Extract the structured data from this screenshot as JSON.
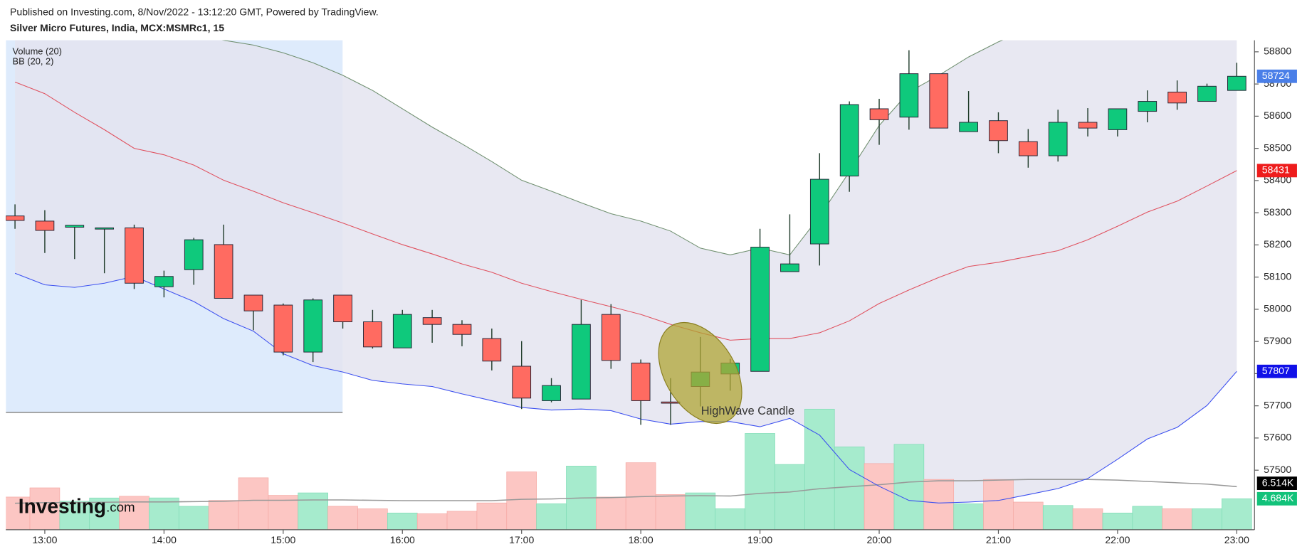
{
  "chart_data": {
    "type": "candlestick",
    "header": "Published on Investing.com, 8/Nov/2022 - 13:12:20 GMT, Powered by TradingView.",
    "title": "Silver Micro Futures, India, MCX:MSMRc1, 15",
    "annotation": "HighWave Candle",
    "watermark": [
      "Investing",
      ".com"
    ],
    "x": [
      "12:45",
      "13:00",
      "13:15",
      "13:30",
      "13:45",
      "14:00",
      "14:15",
      "14:30",
      "14:45",
      "15:00",
      "15:15",
      "15:30",
      "15:45",
      "16:00",
      "16:15",
      "16:30",
      "16:45",
      "17:00",
      "17:15",
      "17:30",
      "17:45",
      "18:00",
      "18:15",
      "18:30",
      "18:45",
      "19:00",
      "19:15",
      "19:30",
      "19:45",
      "20:00",
      "20:15",
      "20:30",
      "20:45",
      "21:00",
      "21:15",
      "21:30",
      "21:45",
      "22:00",
      "22:15",
      "22:30",
      "22:45",
      "23:00"
    ],
    "xticks": [
      "13:00",
      "14:00",
      "15:00",
      "16:00",
      "17:00",
      "18:00",
      "19:00",
      "20:00",
      "21:00",
      "22:00",
      "23:00"
    ],
    "open": [
      58290,
      58274,
      58255,
      58253,
      58253,
      58070,
      58123,
      58201,
      58044,
      58013,
      57867,
      58044,
      57961,
      57880,
      57974,
      57953,
      57909,
      57823,
      57716,
      57721,
      57984,
      57833,
      57712,
      57760,
      57799,
      57807,
      58117,
      58203,
      58414,
      58623,
      58597,
      58732,
      58552,
      58586,
      58521,
      58477,
      58581,
      58558,
      58615,
      58675,
      58646,
      58680
    ],
    "high": [
      58326,
      58308,
      58261,
      58253,
      58263,
      58120,
      58222,
      58263,
      58044,
      58018,
      58034,
      58044,
      57998,
      57998,
      57998,
      57966,
      57940,
      57901,
      57786,
      58029,
      58016,
      57844,
      57786,
      57914,
      57846,
      58250,
      58295,
      58485,
      58646,
      58654,
      58805,
      58732,
      58678,
      58612,
      58560,
      58620,
      58625,
      58623,
      58680,
      58711,
      58701,
      58766
    ],
    "low": [
      58250,
      58175,
      58156,
      58112,
      58063,
      58037,
      58076,
      58034,
      57935,
      57857,
      57836,
      57940,
      57878,
      57880,
      57896,
      57885,
      57810,
      57690,
      57711,
      57721,
      57815,
      57641,
      57641,
      57698,
      57747,
      57807,
      58117,
      58136,
      58365,
      58511,
      58558,
      58563,
      58552,
      58485,
      58440,
      58459,
      58537,
      58537,
      58581,
      58620,
      58646,
      58680
    ],
    "close": [
      58276,
      58245,
      58261,
      58253,
      58081,
      58102,
      58216,
      58034,
      57995,
      57867,
      58029,
      57961,
      57883,
      57984,
      57953,
      57922,
      57839,
      57724,
      57763,
      57953,
      57841,
      57716,
      57710,
      57805,
      57833,
      58193,
      58141,
      58404,
      58636,
      58589,
      58732,
      58563,
      58581,
      58524,
      58477,
      58581,
      58563,
      58623,
      58646,
      58641,
      58693,
      58724
    ],
    "up_color": "#0fc97c",
    "down_color": "#ff6b61",
    "last_price_color": "#4a7fe8",
    "ylim": [
      57315,
      58836
    ],
    "yticks": [
      57500,
      57600,
      57700,
      57800,
      57900,
      58000,
      58100,
      58200,
      58300,
      58400,
      58500,
      58600,
      58700,
      58800
    ],
    "volume": {
      "values": [
        4940,
        6330,
        4300,
        4800,
        5060,
        4810,
        3540,
        4430,
        7850,
        5190,
        5570,
        3540,
        3160,
        2530,
        2410,
        2790,
        4050,
        8740,
        3920,
        9620,
        4940,
        10130,
        5320,
        5570,
        3170,
        14560,
        9870,
        18230,
        12530,
        10000,
        12910,
        7600,
        3920,
        7600,
        4180,
        3670,
        3170,
        2530,
        3540,
        3170,
        3170,
        4684
      ],
      "last_label": "4.684K",
      "up_color": "#a6ebcd",
      "down_color": "#fcc6c3",
      "ylim": [
        0,
        18500
      ]
    },
    "volume_ma": {
      "name": "Volume (20)",
      "values": [
        4000,
        4100,
        4100,
        4150,
        4200,
        4200,
        4250,
        4300,
        4450,
        4450,
        4500,
        4500,
        4450,
        4400,
        4400,
        4400,
        4400,
        4600,
        4650,
        4800,
        4850,
        5000,
        5100,
        5150,
        5100,
        5500,
        5700,
        6200,
        6500,
        6800,
        7200,
        7400,
        7400,
        7500,
        7600,
        7600,
        7600,
        7500,
        7300,
        7100,
        6900,
        6514
      ],
      "last_label": "6.514K",
      "color": "#999999"
    },
    "bollinger": {
      "name": "BB (20, 2)",
      "upper": [
        58962,
        58949,
        58935,
        58922,
        58909,
        58883,
        58857,
        58836,
        58821,
        58797,
        58766,
        58727,
        58680,
        58623,
        58566,
        58514,
        58459,
        58401,
        58367,
        58331,
        58297,
        58274,
        58243,
        58190,
        58169,
        58190,
        58169,
        58289,
        58427,
        58571,
        58675,
        58727,
        58784,
        58831,
        58870,
        58904,
        58935,
        58962,
        58988,
        59008,
        59027,
        59040
      ],
      "middle": [
        58706,
        58670,
        58612,
        58558,
        58500,
        58480,
        58448,
        58401,
        58367,
        58331,
        58300,
        58268,
        58234,
        58201,
        58172,
        58141,
        58115,
        58081,
        58055,
        58031,
        58008,
        57984,
        57953,
        57927,
        57904,
        57909,
        57909,
        57927,
        57964,
        58018,
        58060,
        58099,
        58133,
        58146,
        58164,
        58182,
        58216,
        58258,
        58302,
        58336,
        58383,
        58431
      ],
      "lower": [
        58112,
        58076,
        58068,
        58081,
        58102,
        58063,
        58024,
        57971,
        57932,
        57862,
        57825,
        57805,
        57779,
        57768,
        57760,
        57737,
        57716,
        57695,
        57687,
        57690,
        57685,
        57659,
        57643,
        57651,
        57651,
        57635,
        57661,
        57609,
        57502,
        57450,
        57406,
        57398,
        57401,
        57406,
        57424,
        57443,
        57474,
        57534,
        57597,
        57633,
        57701,
        57807
      ],
      "upper_color": "#6f8f6f",
      "middle_color": "#e0505e",
      "lower_color": "#3b4ff0",
      "fill": "#e4e4f0"
    }
  }
}
